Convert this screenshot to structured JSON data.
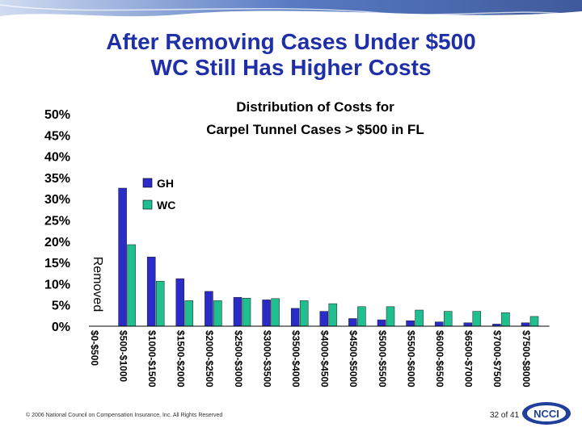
{
  "slide": {
    "title_line1": "After Removing Cases Under $500",
    "title_line2": "WC Still Has Higher Costs",
    "footer": "© 2006 National Council on Compensation Insurance, Inc. All Rights Reserved",
    "page": "32 of 41",
    "logo_text": "NCCI"
  },
  "colors": {
    "title": "#1f2fa8",
    "gh": "#2b2bc8",
    "wc": "#1fbf8f",
    "banner": "#3a63b8"
  },
  "chart_data": {
    "type": "bar",
    "title_line1": "Distribution of Costs for",
    "title_line2": "Carpel Tunnel Cases > $500 in FL",
    "categories": [
      "$0-$500",
      "$500-$1000",
      "$1000-$1500",
      "$1500-$2000",
      "$2000-$2500",
      "$2500-$3000",
      "$3000-$3500",
      "$3500-$4000",
      "$4000-$4500",
      "$4500-$5000",
      "$5000-$5500",
      "$5500-$6000",
      "$6000-$6500",
      "$6500-$7000",
      "$7000-$7500",
      "$7500-$8000"
    ],
    "removed_label": "Removed",
    "series": [
      {
        "name": "GH",
        "color": "#2b2bc8",
        "values": [
          null,
          32.5,
          16.3,
          11.2,
          8.2,
          6.8,
          6.2,
          4.2,
          3.5,
          1.8,
          1.5,
          1.3,
          1.0,
          0.8,
          0.5,
          0.8
        ]
      },
      {
        "name": "WC",
        "color": "#1fbf8f",
        "values": [
          null,
          19.2,
          10.6,
          6.0,
          6.0,
          6.6,
          6.5,
          6.0,
          5.3,
          4.6,
          4.6,
          3.8,
          3.5,
          3.5,
          3.2,
          2.3
        ]
      }
    ],
    "yticks": [
      "0%",
      "5%",
      "10%",
      "15%",
      "20%",
      "25%",
      "30%",
      "35%",
      "40%",
      "45%",
      "50%"
    ],
    "ylim": [
      0,
      50
    ],
    "legend": "upper-left",
    "grid": false
  }
}
